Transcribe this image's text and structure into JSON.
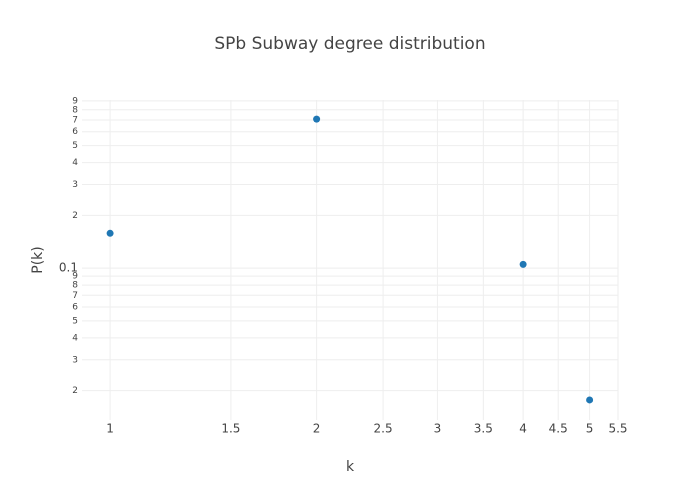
{
  "chart_data": {
    "type": "scatter",
    "title": "SPb Subway degree distribution",
    "x_label": "k",
    "y_label": "P(k)",
    "x": [
      1,
      2,
      4,
      5
    ],
    "values": [
      0.158,
      0.708,
      0.105,
      0.0177
    ],
    "color": "#1f77b4",
    "xlog": true,
    "ylog": true,
    "grid": true,
    "xlim": [
      0.91,
      5.5
    ],
    "ylim": [
      0.0136,
      0.91
    ],
    "xticks": [
      1,
      1.5,
      2,
      2.5,
      3,
      3.5,
      4,
      4.5,
      5,
      5.5
    ],
    "yticks": [
      {
        "value": 0.02,
        "label": "2"
      },
      {
        "value": 0.03,
        "label": "3"
      },
      {
        "value": 0.04,
        "label": "4"
      },
      {
        "value": 0.05,
        "label": "5"
      },
      {
        "value": 0.06,
        "label": "6"
      },
      {
        "value": 0.07,
        "label": "7"
      },
      {
        "value": 0.08,
        "label": "8"
      },
      {
        "value": 0.09,
        "label": "9"
      },
      0.1,
      {
        "value": 0.2,
        "label": "2"
      },
      {
        "value": 0.3,
        "label": "3"
      },
      {
        "value": 0.4,
        "label": "4"
      },
      {
        "value": 0.5,
        "label": "5"
      },
      {
        "value": 0.6,
        "label": "6"
      },
      {
        "value": 0.7,
        "label": "7"
      },
      {
        "value": 0.8,
        "label": "8"
      },
      {
        "value": 0.9,
        "label": "9"
      }
    ]
  }
}
